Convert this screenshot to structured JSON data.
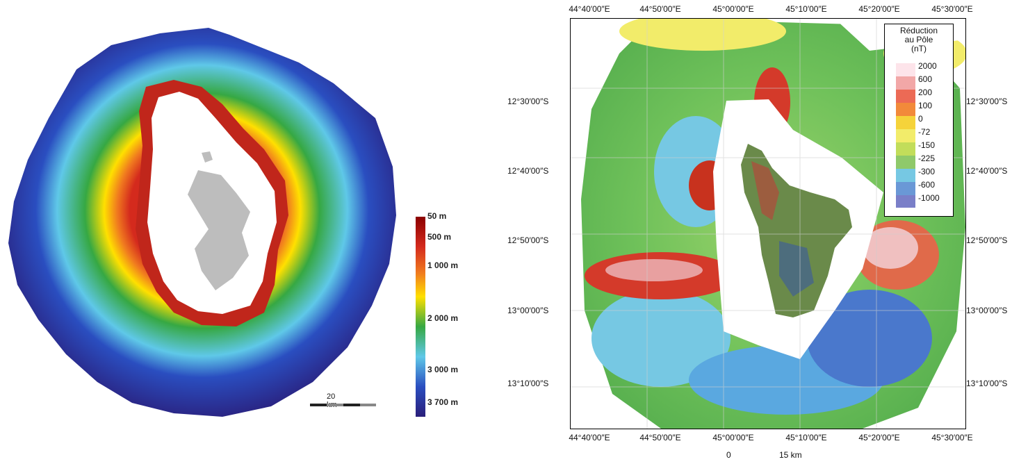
{
  "left_map": {
    "scale_bar": {
      "label": "20 km"
    },
    "depth_legend": {
      "labels": [
        "50 m",
        "500 m",
        "1 000 m",
        "2 000 m",
        "3 000 m",
        "3 700 m"
      ],
      "colors": [
        "#8b0000",
        "#d42a1d",
        "#f07a1f",
        "#ffe000",
        "#36a843",
        "#5fc8e8",
        "#2a4ec0",
        "#2a1e7a"
      ]
    }
  },
  "right_map": {
    "longitude_labels": [
      "44°40′00″E",
      "44°50′00″E",
      "45°00′00″E",
      "45°10′00″E",
      "45°20′00″E",
      "45°30′00″E"
    ],
    "latitude_labels": [
      "12°30′00″S",
      "12°40′00″S",
      "12°50′00″S",
      "13°00′00″S",
      "13°10′00″S"
    ],
    "legend": {
      "title_lines": [
        "Réduction",
        "au Pôle",
        "(nT)"
      ],
      "values": [
        "2000",
        "600",
        "200",
        "100",
        "0",
        "-72",
        "-150",
        "-225",
        "-300",
        "-600",
        "-1000"
      ],
      "colors": [
        "#fde4ea",
        "#f2a7a7",
        "#ec6a55",
        "#f28a3a",
        "#f5d33a",
        "#f2ec6a",
        "#c2dd5a",
        "#8fc96a",
        "#76c8e3",
        "#6a98d6",
        "#7a7fc8"
      ]
    },
    "scale_bar": {
      "zero_label": "0",
      "end_label": "15 km"
    }
  }
}
